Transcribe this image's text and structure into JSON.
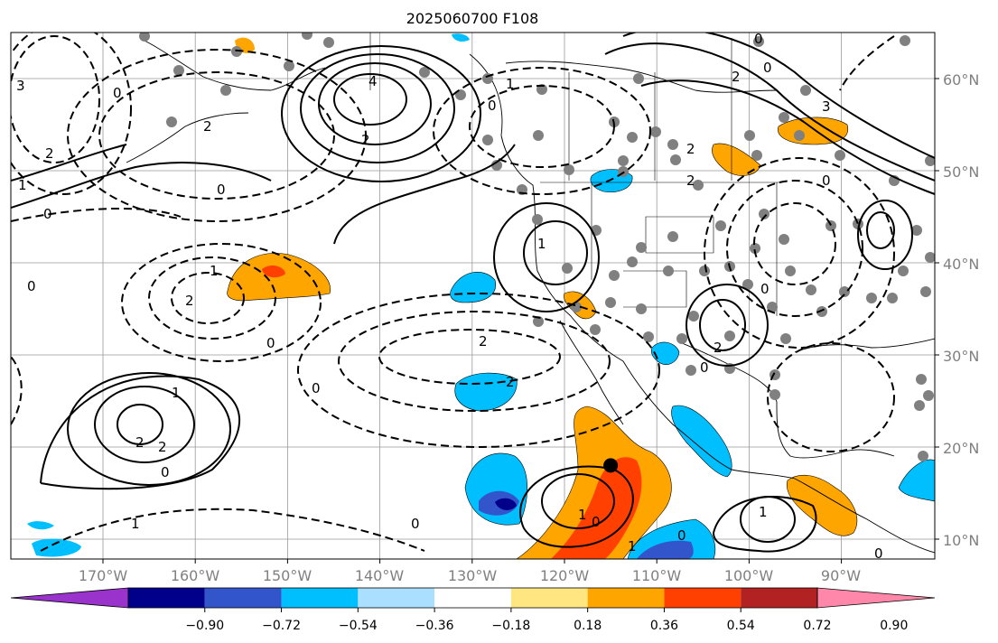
{
  "title": "2025060700 F108",
  "lon_labels": [
    "170°W",
    "160°W",
    "150°W",
    "140°W",
    "130°W",
    "120°W",
    "110°W",
    "100°W",
    "90°W"
  ],
  "lat_labels": [
    "60°N",
    "50°N",
    "40°N",
    "30°N",
    "20°N",
    "10°N"
  ],
  "colorbar": {
    "tick_labels": [
      "−0.90",
      "−0.72",
      "−0.54",
      "−0.36",
      "−0.18",
      "0.18",
      "0.36",
      "0.54",
      "0.72",
      "0.90"
    ],
    "colors": [
      "#9933cc",
      "#00008b",
      "#3355cc",
      "#00bfff",
      "#aadfff",
      "#ffffff",
      "#ffe680",
      "#ffa500",
      "#ff4000",
      "#b22222",
      "#ff88aa"
    ]
  },
  "contour_labels": [
    "0",
    "1",
    "2",
    "3",
    "4",
    "-1",
    "-2"
  ],
  "marker": {
    "lon": -115,
    "lat": 18,
    "color": "#000000"
  },
  "station_dot_color": "#808080"
}
